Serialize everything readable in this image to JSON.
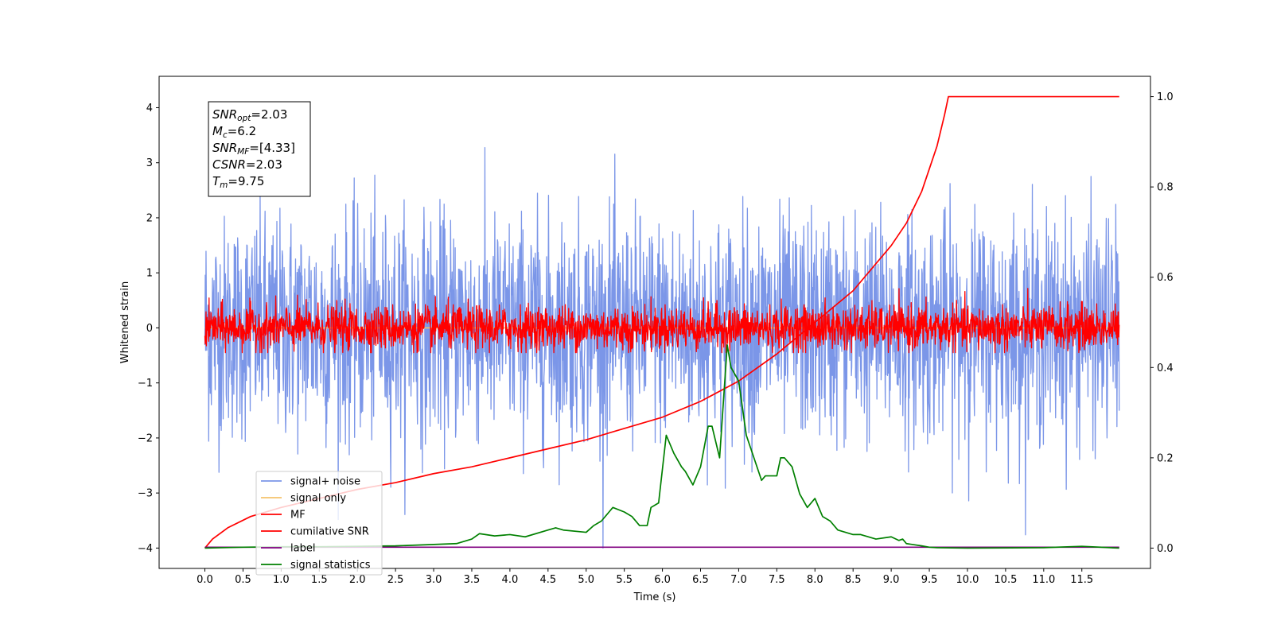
{
  "chart_data": {
    "type": "line",
    "xlabel": "Time (s)",
    "ylabel_left": "Whitened strain",
    "ylabel_right": "",
    "xlim": [
      -0.6,
      12.4
    ],
    "ylim_left": [
      -4.37,
      4.57
    ],
    "ylim_right": [
      -0.045,
      1.045
    ],
    "x_ticks": [
      0.0,
      0.5,
      1.0,
      1.5,
      2.0,
      2.5,
      3.0,
      3.5,
      4.0,
      4.5,
      5.0,
      5.5,
      6.0,
      6.5,
      7.0,
      7.5,
      8.0,
      8.5,
      9.0,
      9.5,
      10.0,
      10.5,
      11.0,
      11.5
    ],
    "x_tick_labels": [
      "0.0",
      "0.5",
      "1.0",
      "1.5",
      "2.0",
      "2.5",
      "3.0",
      "3.5",
      "4.0",
      "4.5",
      "5.0",
      "5.5",
      "6.0",
      "6.5",
      "7.0",
      "7.5",
      "8.0",
      "8.5",
      "9.0",
      "9.5",
      "10.0",
      "10.5",
      "11.0",
      "11.5"
    ],
    "y_left_ticks": [
      -4,
      -3,
      -2,
      -1,
      0,
      1,
      2,
      3,
      4
    ],
    "y_left_tick_labels": [
      "−4",
      "−3",
      "−2",
      "−1",
      "0",
      "1",
      "2",
      "3",
      "4"
    ],
    "y_right_ticks": [
      0.0,
      0.2,
      0.4,
      0.6,
      0.8,
      1.0
    ],
    "y_right_tick_labels": [
      "0.0",
      "0.2",
      "0.4",
      "0.6",
      "0.8",
      "1.0"
    ],
    "grid": false,
    "legend_position": "lower-left",
    "annotation": [
      {
        "base": "SNR",
        "sub": "opt",
        "value": "=2.03"
      },
      {
        "base": "M",
        "sub": "c",
        "value": "=6.2"
      },
      {
        "base": "SNR",
        "sub": "MF",
        "value": "=[4.33]"
      },
      {
        "base": "CSNR",
        "sub": "",
        "value": "=2.03"
      },
      {
        "base": "T",
        "sub": "m",
        "value": "=9.75"
      }
    ],
    "series": [
      {
        "name": "signal+ noise",
        "axis": "left",
        "color": "#7b96e8",
        "kind": "noise",
        "x_range": [
          0.0,
          11.99
        ],
        "mean": 0.0,
        "std": 1.0,
        "clip": [
          -4.0,
          4.2
        ]
      },
      {
        "name": "signal only",
        "axis": "left",
        "color": "#f5c26b",
        "kind": "line",
        "x": [
          0.0,
          11.99
        ],
        "y": [
          0.0,
          0.0
        ]
      },
      {
        "name": "MF",
        "axis": "left",
        "color": "#ff0000",
        "kind": "noise",
        "x_range": [
          0.0,
          11.99
        ],
        "mean": 0.0,
        "std": 0.2,
        "clip": [
          -0.45,
          1.0
        ]
      },
      {
        "name": "cumilative SNR",
        "axis": "right",
        "color": "#ff0000",
        "kind": "line",
        "x": [
          0.0,
          0.1,
          0.3,
          0.6,
          1.0,
          1.5,
          2.0,
          2.5,
          3.0,
          3.5,
          4.0,
          4.5,
          5.0,
          5.5,
          6.0,
          6.5,
          7.0,
          7.5,
          8.0,
          8.5,
          9.0,
          9.2,
          9.4,
          9.5,
          9.6,
          9.7,
          9.75,
          10.0,
          11.0,
          11.99
        ],
        "y": [
          0.0,
          0.02,
          0.045,
          0.07,
          0.09,
          0.11,
          0.13,
          0.145,
          0.165,
          0.18,
          0.2,
          0.22,
          0.24,
          0.265,
          0.29,
          0.325,
          0.37,
          0.43,
          0.5,
          0.57,
          0.67,
          0.72,
          0.79,
          0.84,
          0.89,
          0.96,
          1.0,
          1.0,
          1.0,
          1.0
        ]
      },
      {
        "name": "label",
        "axis": "right",
        "color": "#800080",
        "kind": "line",
        "x": [
          0.0,
          11.99
        ],
        "y": [
          0.002,
          0.002
        ]
      },
      {
        "name": "signal statistics",
        "axis": "right",
        "color": "#008000",
        "kind": "line",
        "x": [
          0.0,
          0.5,
          1.0,
          1.5,
          2.0,
          2.5,
          3.0,
          3.3,
          3.5,
          3.6,
          3.8,
          4.0,
          4.2,
          4.5,
          4.6,
          4.7,
          5.0,
          5.1,
          5.2,
          5.3,
          5.35,
          5.5,
          5.6,
          5.7,
          5.8,
          5.85,
          5.95,
          6.05,
          6.15,
          6.25,
          6.3,
          6.4,
          6.5,
          6.6,
          6.65,
          6.75,
          6.85,
          6.9,
          7.0,
          7.1,
          7.2,
          7.3,
          7.35,
          7.5,
          7.55,
          7.6,
          7.7,
          7.8,
          7.9,
          8.0,
          8.1,
          8.2,
          8.3,
          8.4,
          8.5,
          8.6,
          8.8,
          9.0,
          9.1,
          9.15,
          9.2,
          9.4,
          9.5,
          9.6,
          10.0,
          11.0,
          11.5,
          11.99
        ],
        "y": [
          0.0,
          0.002,
          0.003,
          0.003,
          0.004,
          0.005,
          0.008,
          0.01,
          0.02,
          0.032,
          0.027,
          0.03,
          0.025,
          0.04,
          0.045,
          0.04,
          0.035,
          0.05,
          0.06,
          0.08,
          0.09,
          0.08,
          0.07,
          0.05,
          0.05,
          0.09,
          0.1,
          0.25,
          0.21,
          0.18,
          0.17,
          0.14,
          0.18,
          0.27,
          0.27,
          0.2,
          0.45,
          0.4,
          0.37,
          0.25,
          0.2,
          0.15,
          0.16,
          0.16,
          0.2,
          0.2,
          0.18,
          0.12,
          0.09,
          0.11,
          0.07,
          0.06,
          0.04,
          0.035,
          0.03,
          0.03,
          0.02,
          0.025,
          0.017,
          0.02,
          0.01,
          0.005,
          0.002,
          0.001,
          0.0,
          0.001,
          0.004,
          0.0
        ]
      }
    ]
  }
}
